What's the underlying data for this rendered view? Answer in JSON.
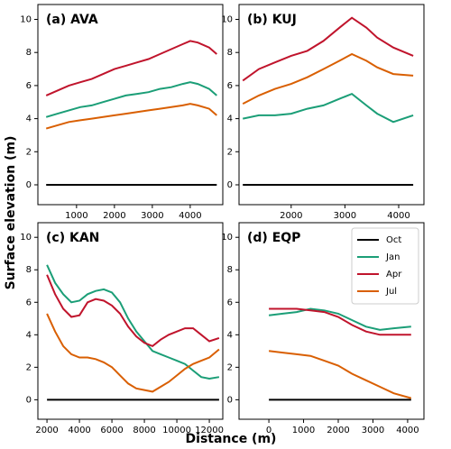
{
  "axis_labels": {
    "x": "Distance (m)",
    "y": "Surface elevation (m)"
  },
  "chart_data": [
    {
      "type": "line",
      "title": "(a) AVA",
      "x": [
        200,
        500,
        800,
        1100,
        1400,
        1700,
        2000,
        2300,
        2600,
        2900,
        3200,
        3500,
        3800,
        4000,
        4200,
        4500,
        4700
      ],
      "series": [
        {
          "name": "Oct",
          "color": "#000000",
          "values": [
            0,
            0,
            0,
            0,
            0,
            0,
            0,
            0,
            0,
            0,
            0,
            0,
            0,
            0,
            0,
            0,
            0
          ]
        },
        {
          "name": "Jan",
          "color": "#1b9e77",
          "values": [
            4.1,
            4.3,
            4.5,
            4.7,
            4.8,
            5.0,
            5.2,
            5.4,
            5.5,
            5.6,
            5.8,
            5.9,
            6.1,
            6.2,
            6.1,
            5.8,
            5.4
          ]
        },
        {
          "name": "Apr",
          "color": "#c0142c",
          "values": [
            5.4,
            5.7,
            6.0,
            6.2,
            6.4,
            6.7,
            7.0,
            7.2,
            7.4,
            7.6,
            7.9,
            8.2,
            8.5,
            8.7,
            8.6,
            8.3,
            7.9
          ]
        },
        {
          "name": "Jul",
          "color": "#d95f02",
          "values": [
            3.4,
            3.6,
            3.8,
            3.9,
            4.0,
            4.1,
            4.2,
            4.3,
            4.4,
            4.5,
            4.6,
            4.7,
            4.8,
            4.9,
            4.8,
            4.6,
            4.2
          ]
        }
      ],
      "xlim": [
        -20,
        4860
      ],
      "xticks": [
        1000,
        2000,
        3000,
        4000
      ],
      "ylim": [
        -1.2,
        10.9
      ],
      "yticks": [
        0,
        2,
        4,
        6,
        8,
        10
      ]
    },
    {
      "type": "line",
      "title": "(b) KUJ",
      "x": [
        1100,
        1400,
        1700,
        2000,
        2300,
        2600,
        2900,
        3130,
        3400,
        3600,
        3900,
        4270
      ],
      "series": [
        {
          "name": "Oct",
          "color": "#000000",
          "values": [
            0,
            0,
            0,
            0,
            0,
            0,
            0,
            0,
            0,
            0,
            0,
            0
          ]
        },
        {
          "name": "Jan",
          "color": "#1b9e77",
          "values": [
            4.0,
            4.2,
            4.2,
            4.3,
            4.6,
            4.8,
            5.2,
            5.5,
            4.8,
            4.3,
            3.8,
            4.2
          ]
        },
        {
          "name": "Apr",
          "color": "#c0142c",
          "values": [
            6.3,
            7.0,
            7.4,
            7.8,
            8.1,
            8.7,
            9.5,
            10.1,
            9.5,
            8.9,
            8.3,
            7.8
          ]
        },
        {
          "name": "Jul",
          "color": "#d95f02",
          "values": [
            4.9,
            5.4,
            5.8,
            6.1,
            6.5,
            7.0,
            7.5,
            7.9,
            7.5,
            7.1,
            6.7,
            6.6
          ]
        }
      ],
      "xlim": [
        1030,
        4470
      ],
      "xticks": [
        2000,
        3000,
        4000
      ],
      "ylim": [
        -1.2,
        10.9
      ],
      "yticks": [
        0,
        2,
        4,
        6,
        8,
        10
      ]
    },
    {
      "type": "line",
      "title": "(c) KAN",
      "x": [
        2000,
        2500,
        3000,
        3500,
        4000,
        4500,
        5000,
        5500,
        6000,
        6500,
        7000,
        7500,
        8000,
        8500,
        9000,
        9500,
        10000,
        10500,
        11000,
        11500,
        12000,
        12600
      ],
      "series": [
        {
          "name": "Oct",
          "color": "#000000",
          "values": [
            0,
            0,
            0,
            0,
            0,
            0,
            0,
            0,
            0,
            0,
            0,
            0,
            0,
            0,
            0,
            0,
            0,
            0,
            0,
            0,
            0,
            0
          ]
        },
        {
          "name": "Jan",
          "color": "#1b9e77",
          "values": [
            8.3,
            7.2,
            6.5,
            6.0,
            6.1,
            6.5,
            6.7,
            6.8,
            6.6,
            6.0,
            5.0,
            4.2,
            3.6,
            3.0,
            2.8,
            2.6,
            2.4,
            2.2,
            1.8,
            1.4,
            1.3,
            1.4
          ]
        },
        {
          "name": "Apr",
          "color": "#c0142c",
          "values": [
            7.7,
            6.5,
            5.6,
            5.1,
            5.2,
            6.0,
            6.2,
            6.1,
            5.8,
            5.3,
            4.5,
            3.9,
            3.5,
            3.3,
            3.7,
            4.0,
            4.2,
            4.4,
            4.4,
            4.0,
            3.6,
            3.8
          ]
        },
        {
          "name": "Jul",
          "color": "#d95f02",
          "values": [
            5.3,
            4.2,
            3.3,
            2.8,
            2.6,
            2.6,
            2.5,
            2.3,
            2.0,
            1.5,
            1.0,
            0.7,
            0.6,
            0.5,
            0.8,
            1.1,
            1.5,
            1.9,
            2.2,
            2.4,
            2.6,
            3.1
          ]
        }
      ],
      "xlim": [
        1440,
        12830
      ],
      "xticks": [
        2000,
        4000,
        6000,
        8000,
        10000,
        12000
      ],
      "ylim": [
        -1.2,
        10.9
      ],
      "yticks": [
        0,
        2,
        4,
        6,
        8,
        10
      ]
    },
    {
      "type": "line",
      "title": "(d) EQP",
      "x": [
        0,
        400,
        800,
        1200,
        1600,
        2000,
        2400,
        2800,
        3200,
        3600,
        4100
      ],
      "series": [
        {
          "name": "Oct",
          "color": "#000000",
          "values": [
            0,
            0,
            0,
            0,
            0,
            0,
            0,
            0,
            0,
            0,
            0
          ]
        },
        {
          "name": "Jan",
          "color": "#1b9e77",
          "values": [
            5.2,
            5.3,
            5.4,
            5.6,
            5.5,
            5.3,
            4.9,
            4.5,
            4.3,
            4.4,
            4.5
          ]
        },
        {
          "name": "Apr",
          "color": "#c0142c",
          "values": [
            5.6,
            5.6,
            5.6,
            5.5,
            5.4,
            5.1,
            4.6,
            4.2,
            4.0,
            4.0,
            4.0
          ]
        },
        {
          "name": "Jul",
          "color": "#d95f02",
          "values": [
            3.0,
            2.9,
            2.8,
            2.7,
            2.4,
            2.1,
            1.6,
            1.2,
            0.8,
            0.4,
            0.1
          ]
        }
      ],
      "xlim": [
        -860,
        4470
      ],
      "xticks": [
        0,
        1000,
        2000,
        3000,
        4000
      ],
      "ylim": [
        -1.2,
        10.9
      ],
      "yticks": [
        0,
        2,
        4,
        6,
        8,
        10
      ],
      "legend": "upper right"
    }
  ]
}
